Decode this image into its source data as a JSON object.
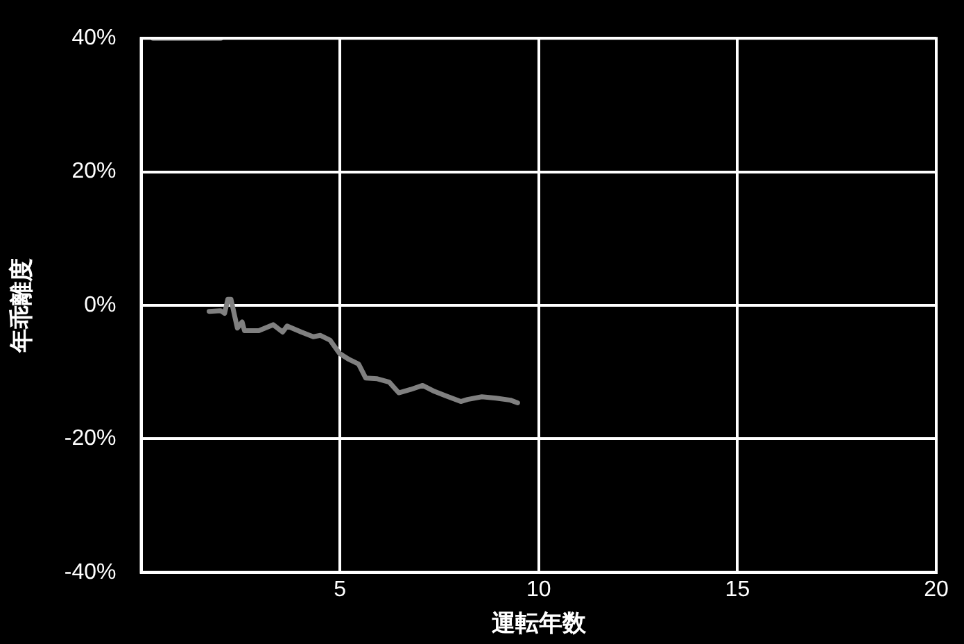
{
  "chart_data": {
    "type": "line",
    "xlabel": "運転年数",
    "ylabel": "年乖離度",
    "series": [
      {
        "color": "#808080",
        "x": [
          0.3,
          2.0
        ],
        "values": [
          40,
          40
        ]
      },
      {
        "color": "#808080",
        "x": [
          1.71,
          2.0,
          2.1,
          2.18,
          2.26,
          2.42,
          2.54,
          2.6,
          2.96,
          3.32,
          3.56,
          3.67,
          4.03,
          4.33,
          4.51,
          4.75,
          4.99,
          5.23,
          5.47,
          5.65,
          5.94,
          6.24,
          6.48,
          6.78,
          7.08,
          7.38,
          7.68,
          8.04,
          8.21,
          8.57,
          8.93,
          9.29,
          9.47
        ],
        "values": [
          -0.9,
          -0.8,
          -1.2,
          0.9,
          0.9,
          -3.4,
          -2.5,
          -3.8,
          -3.8,
          -2.9,
          -4.0,
          -3.1,
          -4.0,
          -4.7,
          -4.5,
          -5.2,
          -7.2,
          -8.1,
          -8.8,
          -10.9,
          -11.0,
          -11.5,
          -13.1,
          -12.6,
          -12.0,
          -12.9,
          -13.6,
          -14.4,
          -14.1,
          -13.7,
          -13.9,
          -14.2,
          -14.6
        ]
      }
    ],
    "xlim": [
      0,
      20
    ],
    "xticks": [
      5,
      10,
      15,
      20
    ],
    "ylim": [
      -40,
      40
    ],
    "yticks": [
      {
        "value": -40,
        "label": "-40%"
      },
      {
        "value": -20,
        "label": "-20%"
      },
      {
        "value": 0,
        "label": "0%"
      },
      {
        "value": 20,
        "label": "20%"
      },
      {
        "value": 40,
        "label": "40%"
      }
    ],
    "grid": true,
    "legend": false,
    "marker": "none",
    "line_style": "solid"
  }
}
